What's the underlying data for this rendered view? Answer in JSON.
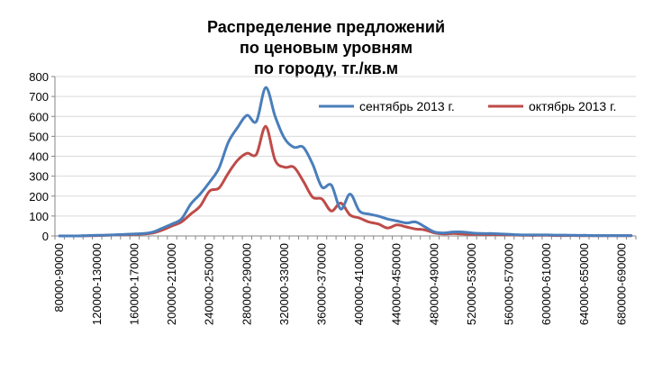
{
  "chart_data": {
    "type": "line",
    "title": [
      "Распределение предложений",
      "по ценовым уровням",
      "по городу, тг./кв.м"
    ],
    "xlabel": "",
    "ylabel": "",
    "ylim": [
      0,
      800
    ],
    "y_ticks": [
      0,
      100,
      200,
      300,
      400,
      500,
      600,
      700,
      800
    ],
    "grid": true,
    "legend_position": "top-right",
    "categories": [
      "80000-90000",
      "90000-100000",
      "100000-110000",
      "110000-120000",
      "120000-130000",
      "130000-140000",
      "140000-150000",
      "150000-160000",
      "160000-170000",
      "170000-180000",
      "180000-190000",
      "190000-200000",
      "200000-210000",
      "210000-220000",
      "220000-230000",
      "230000-240000",
      "240000-250000",
      "250000-260000",
      "260000-270000",
      "270000-280000",
      "280000-290000",
      "290000-300000",
      "300000-310000",
      "310000-320000",
      "320000-330000",
      "330000-340000",
      "340000-350000",
      "350000-360000",
      "360000-370000",
      "370000-380000",
      "380000-390000",
      "390000-400000",
      "400000-410000",
      "410000-420000",
      "420000-430000",
      "430000-440000",
      "440000-450000",
      "450000-460000",
      "460000-470000",
      "470000-480000",
      "480000-490000",
      "490000-500000",
      "500000-510000",
      "510000-520000",
      "520000-530000",
      "530000-540000",
      "540000-550000",
      "550000-560000",
      "560000-570000",
      "570000-580000",
      "580000-590000",
      "590000-600000",
      "600000-610000",
      "610000-620000",
      "620000-630000",
      "630000-640000",
      "640000-650000",
      "650000-660000",
      "660000-670000",
      "670000-680000",
      "680000-690000",
      "690000-700000"
    ],
    "visible_tick_labels": [
      "80000-90000",
      "120000-130000",
      "160000-170000",
      "200000-210000",
      "240000-250000",
      "280000-290000",
      "320000-330000",
      "360000-370000",
      "400000-410000",
      "440000-450000",
      "480000-490000",
      "520000-530000",
      "560000-570000",
      "600000-610000",
      "640000-650000",
      "680000-690000"
    ],
    "series": [
      {
        "name": "сентябрь 2013 г.",
        "color": "#4a7ebb",
        "values": [
          0,
          0,
          0,
          2,
          3,
          4,
          6,
          8,
          10,
          12,
          20,
          40,
          60,
          85,
          160,
          210,
          270,
          340,
          470,
          545,
          605,
          575,
          745,
          600,
          490,
          445,
          445,
          360,
          245,
          255,
          135,
          210,
          125,
          110,
          100,
          85,
          75,
          65,
          70,
          45,
          20,
          15,
          20,
          20,
          15,
          12,
          12,
          10,
          8,
          6,
          5,
          5,
          5,
          4,
          4,
          3,
          3,
          2,
          2,
          2,
          2,
          2
        ]
      },
      {
        "name": "октябрь 2013 г.",
        "color": "#be4b48",
        "values": [
          0,
          0,
          0,
          1,
          2,
          3,
          5,
          6,
          8,
          10,
          15,
          30,
          50,
          70,
          110,
          150,
          225,
          240,
          315,
          380,
          415,
          410,
          550,
          380,
          345,
          345,
          275,
          195,
          185,
          125,
          165,
          105,
          90,
          70,
          60,
          40,
          55,
          45,
          35,
          30,
          15,
          10,
          12,
          10,
          8,
          8,
          7,
          6,
          5,
          4,
          3,
          3,
          3,
          2,
          2,
          2,
          1,
          1,
          1,
          1,
          1,
          1
        ]
      }
    ]
  }
}
